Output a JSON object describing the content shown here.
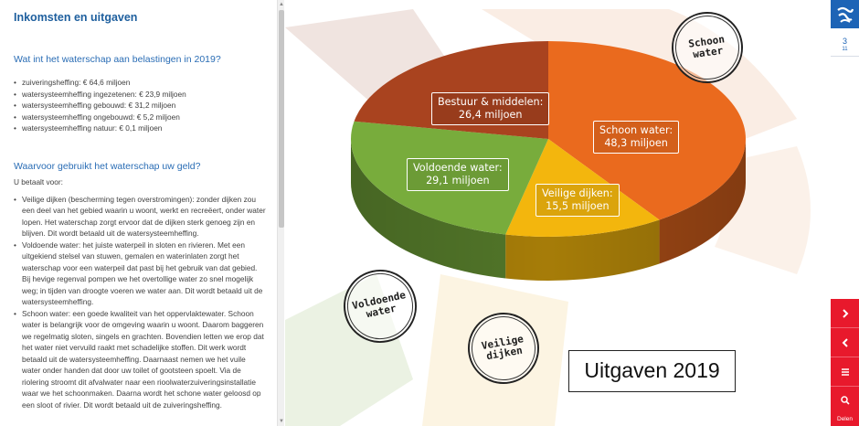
{
  "panel": {
    "title": "Inkomsten en uitgaven",
    "taxes_heading": "Wat int het waterschap aan belastingen in 2019?",
    "taxes": [
      "zuiveringsheffing: € 64,6 miljoen",
      "watersysteemheffing ingezetenen: € 23,9 miljoen",
      "watersysteemheffing gebouwd: € 31,2 miljoen",
      "watersysteemheffing ongebouwd: € 5,2 miljoen",
      "watersysteemheffing natuur: € 0,1 miljoen"
    ],
    "uses_heading": "Waarvoor gebruikt het waterschap uw geld?",
    "uses_intro": "U betaalt voor:",
    "uses": [
      "Veilige dijken (bescherming tegen overstromingen): zonder dijken zou een deel van het gebied waarin u woont, werkt en recreëert, onder water lopen. Het waterschap zorgt ervoor dat de dijken sterk genoeg zijn en blijven. Dit wordt betaald uit de watersysteemheffing.",
      "Voldoende water: het juiste waterpeil in sloten en rivieren. Met een uitgekiend stelsel van stuwen, gemalen en waterinlaten zorgt het waterschap voor een waterpeil dat past bij het gebruik van dat gebied. Bij hevige regenval pompen we het overtollige water zo snel mogelijk weg; in tijden van droogte voeren we water aan. Dit wordt betaald uit de watersysteemheffing.",
      "Schoon water: een goede kwaliteit van het oppervlaktewater. Schoon water is belangrijk voor de omgeving waarin u woont. Daarom baggeren we regelmatig sloten, singels en grachten. Bovendien letten we erop dat het water niet vervuild raakt met schadelijke stoffen. Dit werk wordt betaald uit de watersysteemheffing. Daarnaast nemen we het vuile water onder handen dat door uw toilet of gootsteen spoelt. Via de riolering stroomt dit afvalwater naar een rioolwaterzuiveringsinstallatie waar we het schoonmaken. Daarna wordt het schone water geloosd op een sloot of rivier. Dit wordt betaald uit de zuiveringsheffing."
    ]
  },
  "chart_data": {
    "type": "pie",
    "title": "Uitgaven 2019",
    "slices": [
      {
        "label": "Schoon water:",
        "value_label": "48,3 miljoen",
        "value": 48.3,
        "color": "#ea6a1e"
      },
      {
        "label": "Veilige dijken:",
        "value_label": "15,5 miljoen",
        "value": 15.5,
        "color": "#f3b60d"
      },
      {
        "label": "Voldoende water:",
        "value_label": "29,1 miljoen",
        "value": 29.1,
        "color": "#78ac3c"
      },
      {
        "label": "Bestuur & middelen:",
        "value_label": "26,4 miljoen",
        "value": 26.4,
        "color": "#a9431f"
      }
    ],
    "unit": "miljoen"
  },
  "stamps": {
    "schoon": [
      "Schoon",
      "water"
    ],
    "voldoende": [
      "Voldoende",
      "water"
    ],
    "veilige": [
      "Veilige",
      "dijken"
    ]
  },
  "rail": {
    "page_current": "3",
    "page_total": "11",
    "share_label": "Delen",
    "accent": "#e8192c",
    "brand": "#1d64b6",
    "icons": [
      "next-icon",
      "previous-icon",
      "menu-icon",
      "search-icon"
    ]
  }
}
